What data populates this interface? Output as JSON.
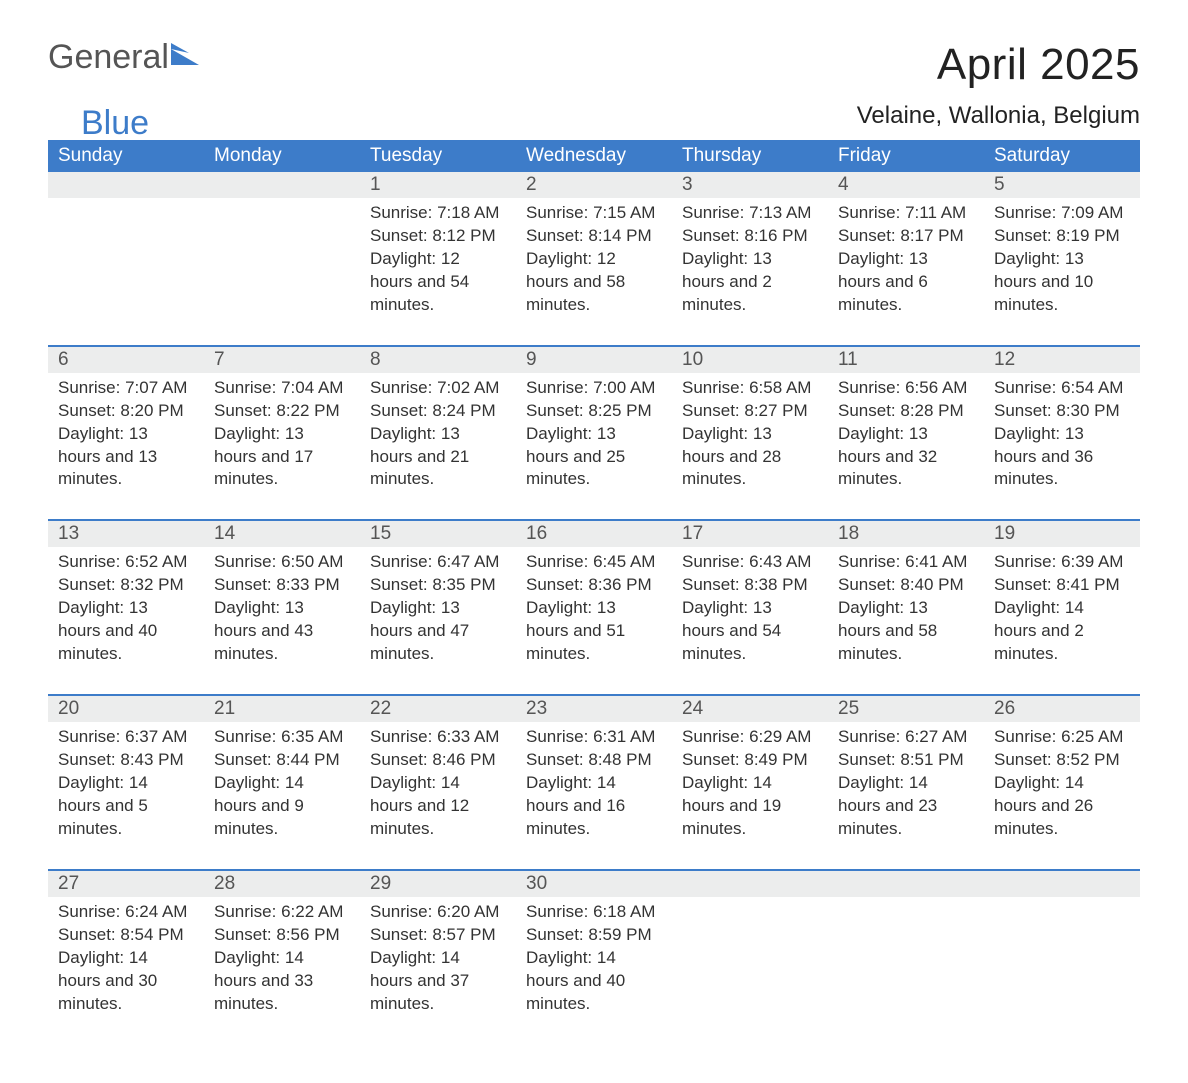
{
  "brand": {
    "word1": "General",
    "word2": "Blue",
    "accent": "#3d7cc9"
  },
  "title": "April 2025",
  "location": "Velaine, Wallonia, Belgium",
  "colors": {
    "header_bg": "#3d7cc9",
    "header_fg": "#ffffff",
    "daynum_bg": "#eceded",
    "row_border": "#3d7cc9",
    "text": "#333333",
    "page_bg": "#ffffff"
  },
  "days_of_week": [
    "Sunday",
    "Monday",
    "Tuesday",
    "Wednesday",
    "Thursday",
    "Friday",
    "Saturday"
  ],
  "weeks": [
    [
      {
        "n": "",
        "lines": []
      },
      {
        "n": "",
        "lines": []
      },
      {
        "n": "1",
        "lines": [
          "Sunrise: 7:18 AM",
          "Sunset: 8:12 PM",
          "Daylight: 12 hours and 54 minutes."
        ]
      },
      {
        "n": "2",
        "lines": [
          "Sunrise: 7:15 AM",
          "Sunset: 8:14 PM",
          "Daylight: 12 hours and 58 minutes."
        ]
      },
      {
        "n": "3",
        "lines": [
          "Sunrise: 7:13 AM",
          "Sunset: 8:16 PM",
          "Daylight: 13 hours and 2 minutes."
        ]
      },
      {
        "n": "4",
        "lines": [
          "Sunrise: 7:11 AM",
          "Sunset: 8:17 PM",
          "Daylight: 13 hours and 6 minutes."
        ]
      },
      {
        "n": "5",
        "lines": [
          "Sunrise: 7:09 AM",
          "Sunset: 8:19 PM",
          "Daylight: 13 hours and 10 minutes."
        ]
      }
    ],
    [
      {
        "n": "6",
        "lines": [
          "Sunrise: 7:07 AM",
          "Sunset: 8:20 PM",
          "Daylight: 13 hours and 13 minutes."
        ]
      },
      {
        "n": "7",
        "lines": [
          "Sunrise: 7:04 AM",
          "Sunset: 8:22 PM",
          "Daylight: 13 hours and 17 minutes."
        ]
      },
      {
        "n": "8",
        "lines": [
          "Sunrise: 7:02 AM",
          "Sunset: 8:24 PM",
          "Daylight: 13 hours and 21 minutes."
        ]
      },
      {
        "n": "9",
        "lines": [
          "Sunrise: 7:00 AM",
          "Sunset: 8:25 PM",
          "Daylight: 13 hours and 25 minutes."
        ]
      },
      {
        "n": "10",
        "lines": [
          "Sunrise: 6:58 AM",
          "Sunset: 8:27 PM",
          "Daylight: 13 hours and 28 minutes."
        ]
      },
      {
        "n": "11",
        "lines": [
          "Sunrise: 6:56 AM",
          "Sunset: 8:28 PM",
          "Daylight: 13 hours and 32 minutes."
        ]
      },
      {
        "n": "12",
        "lines": [
          "Sunrise: 6:54 AM",
          "Sunset: 8:30 PM",
          "Daylight: 13 hours and 36 minutes."
        ]
      }
    ],
    [
      {
        "n": "13",
        "lines": [
          "Sunrise: 6:52 AM",
          "Sunset: 8:32 PM",
          "Daylight: 13 hours and 40 minutes."
        ]
      },
      {
        "n": "14",
        "lines": [
          "Sunrise: 6:50 AM",
          "Sunset: 8:33 PM",
          "Daylight: 13 hours and 43 minutes."
        ]
      },
      {
        "n": "15",
        "lines": [
          "Sunrise: 6:47 AM",
          "Sunset: 8:35 PM",
          "Daylight: 13 hours and 47 minutes."
        ]
      },
      {
        "n": "16",
        "lines": [
          "Sunrise: 6:45 AM",
          "Sunset: 8:36 PM",
          "Daylight: 13 hours and 51 minutes."
        ]
      },
      {
        "n": "17",
        "lines": [
          "Sunrise: 6:43 AM",
          "Sunset: 8:38 PM",
          "Daylight: 13 hours and 54 minutes."
        ]
      },
      {
        "n": "18",
        "lines": [
          "Sunrise: 6:41 AM",
          "Sunset: 8:40 PM",
          "Daylight: 13 hours and 58 minutes."
        ]
      },
      {
        "n": "19",
        "lines": [
          "Sunrise: 6:39 AM",
          "Sunset: 8:41 PM",
          "Daylight: 14 hours and 2 minutes."
        ]
      }
    ],
    [
      {
        "n": "20",
        "lines": [
          "Sunrise: 6:37 AM",
          "Sunset: 8:43 PM",
          "Daylight: 14 hours and 5 minutes."
        ]
      },
      {
        "n": "21",
        "lines": [
          "Sunrise: 6:35 AM",
          "Sunset: 8:44 PM",
          "Daylight: 14 hours and 9 minutes."
        ]
      },
      {
        "n": "22",
        "lines": [
          "Sunrise: 6:33 AM",
          "Sunset: 8:46 PM",
          "Daylight: 14 hours and 12 minutes."
        ]
      },
      {
        "n": "23",
        "lines": [
          "Sunrise: 6:31 AM",
          "Sunset: 8:48 PM",
          "Daylight: 14 hours and 16 minutes."
        ]
      },
      {
        "n": "24",
        "lines": [
          "Sunrise: 6:29 AM",
          "Sunset: 8:49 PM",
          "Daylight: 14 hours and 19 minutes."
        ]
      },
      {
        "n": "25",
        "lines": [
          "Sunrise: 6:27 AM",
          "Sunset: 8:51 PM",
          "Daylight: 14 hours and 23 minutes."
        ]
      },
      {
        "n": "26",
        "lines": [
          "Sunrise: 6:25 AM",
          "Sunset: 8:52 PM",
          "Daylight: 14 hours and 26 minutes."
        ]
      }
    ],
    [
      {
        "n": "27",
        "lines": [
          "Sunrise: 6:24 AM",
          "Sunset: 8:54 PM",
          "Daylight: 14 hours and 30 minutes."
        ]
      },
      {
        "n": "28",
        "lines": [
          "Sunrise: 6:22 AM",
          "Sunset: 8:56 PM",
          "Daylight: 14 hours and 33 minutes."
        ]
      },
      {
        "n": "29",
        "lines": [
          "Sunrise: 6:20 AM",
          "Sunset: 8:57 PM",
          "Daylight: 14 hours and 37 minutes."
        ]
      },
      {
        "n": "30",
        "lines": [
          "Sunrise: 6:18 AM",
          "Sunset: 8:59 PM",
          "Daylight: 14 hours and 40 minutes."
        ]
      },
      {
        "n": "",
        "lines": []
      },
      {
        "n": "",
        "lines": []
      },
      {
        "n": "",
        "lines": []
      }
    ]
  ]
}
